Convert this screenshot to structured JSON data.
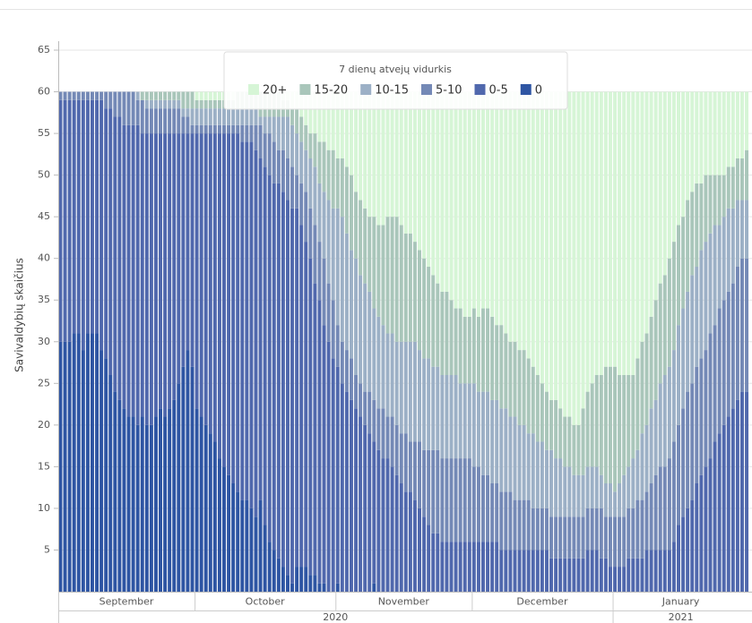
{
  "chart_data": {
    "type": "stacked_bar",
    "y_label": "Savivaldybių skaičius",
    "legend_title": "7 dienų atvejų vidurkis",
    "ylim": [
      0,
      65
    ],
    "yticks": [
      5,
      10,
      15,
      20,
      25,
      30,
      35,
      40,
      45,
      50,
      55,
      60,
      65
    ],
    "grid": true,
    "categories": [
      "September",
      "September",
      "September",
      "September",
      "September",
      "September",
      "September",
      "September",
      "September",
      "September",
      "September",
      "September",
      "September",
      "September",
      "September",
      "September",
      "September",
      "September",
      "September",
      "September",
      "September",
      "September",
      "September",
      "September",
      "September",
      "September",
      "September",
      "September",
      "September",
      "September",
      "October",
      "October",
      "October",
      "October",
      "October",
      "October",
      "October",
      "October",
      "October",
      "October",
      "October",
      "October",
      "October",
      "October",
      "October",
      "October",
      "October",
      "October",
      "October",
      "October",
      "October",
      "October",
      "October",
      "October",
      "October",
      "October",
      "October",
      "October",
      "October",
      "October",
      "October",
      "November",
      "November",
      "November",
      "November",
      "November",
      "November",
      "November",
      "November",
      "November",
      "November",
      "November",
      "November",
      "November",
      "November",
      "November",
      "November",
      "November",
      "November",
      "November",
      "November",
      "November",
      "November",
      "November",
      "November",
      "November",
      "November",
      "November",
      "November",
      "November",
      "November",
      "December",
      "December",
      "December",
      "December",
      "December",
      "December",
      "December",
      "December",
      "December",
      "December",
      "December",
      "December",
      "December",
      "December",
      "December",
      "December",
      "December",
      "December",
      "December",
      "December",
      "December",
      "December",
      "December",
      "December",
      "December",
      "December",
      "December",
      "December",
      "December",
      "December",
      "December",
      "January",
      "January",
      "January",
      "January",
      "January",
      "January",
      "January",
      "January",
      "January",
      "January",
      "January",
      "January",
      "January",
      "January",
      "January",
      "January",
      "January",
      "January",
      "January",
      "January",
      "January",
      "January",
      "January",
      "January",
      "January",
      "January",
      "January",
      "January",
      "January",
      "January"
    ],
    "years": [
      "2020",
      "2020",
      "2020",
      "2020",
      "2020",
      "2020",
      "2020",
      "2020",
      "2020",
      "2020",
      "2020",
      "2020",
      "2020",
      "2020",
      "2020",
      "2020",
      "2020",
      "2020",
      "2020",
      "2020",
      "2020",
      "2020",
      "2020",
      "2020",
      "2020",
      "2020",
      "2020",
      "2020",
      "2020",
      "2020",
      "2020",
      "2020",
      "2020",
      "2020",
      "2020",
      "2020",
      "2020",
      "2020",
      "2020",
      "2020",
      "2020",
      "2020",
      "2020",
      "2020",
      "2020",
      "2020",
      "2020",
      "2020",
      "2020",
      "2020",
      "2020",
      "2020",
      "2020",
      "2020",
      "2020",
      "2020",
      "2020",
      "2020",
      "2020",
      "2020",
      "2020",
      "2020",
      "2020",
      "2020",
      "2020",
      "2020",
      "2020",
      "2020",
      "2020",
      "2020",
      "2020",
      "2020",
      "2020",
      "2020",
      "2020",
      "2020",
      "2020",
      "2020",
      "2020",
      "2020",
      "2020",
      "2020",
      "2020",
      "2020",
      "2020",
      "2020",
      "2020",
      "2020",
      "2020",
      "2020",
      "2020",
      "2020",
      "2020",
      "2020",
      "2020",
      "2020",
      "2020",
      "2020",
      "2020",
      "2020",
      "2020",
      "2020",
      "2020",
      "2020",
      "2020",
      "2020",
      "2020",
      "2020",
      "2020",
      "2020",
      "2020",
      "2020",
      "2020",
      "2020",
      "2020",
      "2020",
      "2020",
      "2020",
      "2020",
      "2020",
      "2020",
      "2020",
      "2021",
      "2021",
      "2021",
      "2021",
      "2021",
      "2021",
      "2021",
      "2021",
      "2021",
      "2021",
      "2021",
      "2021",
      "2021",
      "2021",
      "2021",
      "2021",
      "2021",
      "2021",
      "2021",
      "2021",
      "2021",
      "2021",
      "2021",
      "2021",
      "2021",
      "2021",
      "2021",
      "2021",
      "2021",
      "2021"
    ],
    "series": [
      {
        "name": "20+",
        "color": "#d6f5d6",
        "values": [
          0,
          0,
          0,
          0,
          0,
          0,
          0,
          0,
          0,
          0,
          0,
          0,
          0,
          0,
          0,
          0,
          0,
          0,
          0,
          0,
          0,
          0,
          0,
          0,
          0,
          0,
          0,
          0,
          0,
          0,
          1,
          1,
          1,
          1,
          1,
          1,
          1,
          1,
          1,
          0,
          0,
          0,
          0,
          0,
          0,
          0,
          0,
          0,
          0,
          1,
          1,
          2,
          2,
          3,
          4,
          5,
          5,
          6,
          6,
          7,
          7,
          8,
          8,
          9,
          10,
          12,
          13,
          14,
          15,
          15,
          16,
          16,
          15,
          15,
          15,
          16,
          17,
          17,
          18,
          19,
          20,
          21,
          22,
          23,
          24,
          24,
          25,
          26,
          26,
          27,
          27,
          26,
          27,
          26,
          26,
          27,
          28,
          28,
          29,
          30,
          30,
          31,
          31,
          32,
          33,
          34,
          35,
          36,
          37,
          37,
          38,
          39,
          39,
          40,
          40,
          38,
          36,
          35,
          34,
          34,
          33,
          33,
          33,
          34,
          34,
          34,
          34,
          32,
          30,
          29,
          27,
          25,
          23,
          22,
          20,
          18,
          16,
          15,
          13,
          12,
          11,
          11,
          10,
          10,
          10,
          10,
          10,
          9,
          9,
          8,
          8,
          7
        ]
      },
      {
        "name": "15-20",
        "color": "#a9c6ba",
        "values": [
          0,
          0,
          0,
          0,
          0,
          0,
          0,
          0,
          0,
          0,
          0,
          0,
          0,
          0,
          0,
          0,
          0,
          0,
          1,
          1,
          1,
          1,
          1,
          1,
          1,
          1,
          1,
          2,
          2,
          2,
          1,
          1,
          1,
          1,
          1,
          1,
          1,
          1,
          1,
          2,
          2,
          2,
          2,
          2,
          3,
          3,
          3,
          3,
          3,
          2,
          2,
          2,
          3,
          3,
          3,
          3,
          4,
          5,
          6,
          6,
          7,
          6,
          7,
          8,
          9,
          8,
          9,
          9,
          9,
          11,
          11,
          12,
          14,
          14,
          15,
          14,
          13,
          13,
          12,
          12,
          12,
          11,
          11,
          10,
          10,
          10,
          9,
          8,
          9,
          8,
          8,
          9,
          9,
          10,
          10,
          10,
          9,
          10,
          9,
          9,
          9,
          9,
          9,
          9,
          8,
          8,
          7,
          7,
          6,
          7,
          6,
          6,
          6,
          6,
          6,
          8,
          9,
          10,
          11,
          12,
          14,
          14,
          15,
          13,
          12,
          11,
          10,
          11,
          11,
          11,
          11,
          12,
          12,
          12,
          13,
          13,
          12,
          11,
          11,
          10,
          10,
          8,
          8,
          7,
          6,
          6,
          5,
          5,
          5,
          5,
          5,
          6
        ]
      },
      {
        "name": "10-15",
        "color": "#9cb0c6",
        "values": [
          0,
          0,
          0,
          0,
          0,
          0,
          0,
          0,
          0,
          0,
          0,
          0,
          0,
          0,
          0,
          0,
          0,
          1,
          0,
          1,
          1,
          1,
          1,
          1,
          1,
          1,
          1,
          1,
          1,
          2,
          2,
          2,
          2,
          2,
          2,
          2,
          2,
          2,
          2,
          2,
          2,
          2,
          2,
          2,
          1,
          2,
          2,
          3,
          4,
          4,
          5,
          5,
          5,
          5,
          5,
          6,
          7,
          7,
          8,
          10,
          11,
          14,
          15,
          14,
          13,
          14,
          13,
          13,
          12,
          11,
          11,
          10,
          10,
          10,
          10,
          11,
          11,
          12,
          12,
          11,
          11,
          11,
          10,
          10,
          10,
          10,
          10,
          10,
          9,
          9,
          9,
          10,
          9,
          10,
          10,
          10,
          10,
          10,
          10,
          9,
          10,
          9,
          9,
          8,
          9,
          8,
          8,
          7,
          8,
          7,
          7,
          6,
          6,
          5,
          5,
          5,
          5,
          5,
          5,
          4,
          4,
          4,
          3,
          4,
          5,
          5,
          6,
          6,
          8,
          8,
          9,
          9,
          10,
          11,
          11,
          11,
          12,
          12,
          12,
          13,
          12,
          13,
          13,
          12,
          12,
          10,
          10,
          10,
          9,
          8,
          7,
          7
        ]
      },
      {
        "name": "5-10",
        "color": "#7489b6",
        "values": [
          1,
          1,
          1,
          1,
          1,
          1,
          1,
          1,
          1,
          1,
          2,
          2,
          3,
          3,
          4,
          4,
          4,
          3,
          4,
          3,
          3,
          3,
          3,
          3,
          3,
          3,
          3,
          2,
          2,
          1,
          1,
          1,
          1,
          1,
          1,
          1,
          1,
          1,
          1,
          1,
          2,
          2,
          2,
          3,
          4,
          4,
          5,
          5,
          4,
          5,
          5,
          5,
          4,
          5,
          6,
          6,
          7,
          7,
          8,
          7,
          7,
          5,
          5,
          5,
          5,
          4,
          4,
          4,
          5,
          5,
          5,
          6,
          5,
          6,
          6,
          6,
          7,
          6,
          7,
          8,
          8,
          9,
          10,
          10,
          10,
          10,
          10,
          10,
          10,
          10,
          10,
          9,
          9,
          8,
          8,
          7,
          7,
          7,
          7,
          7,
          6,
          6,
          6,
          6,
          5,
          5,
          5,
          5,
          5,
          5,
          5,
          5,
          5,
          5,
          5,
          5,
          5,
          5,
          5,
          6,
          5,
          6,
          6,
          6,
          6,
          6,
          6,
          7,
          7,
          7,
          8,
          9,
          10,
          10,
          11,
          12,
          12,
          13,
          14,
          14,
          14,
          14,
          14,
          15,
          14,
          15,
          15,
          15,
          15,
          16,
          16,
          16
        ]
      },
      {
        "name": "0-5",
        "color": "#5068ad",
        "values": [
          29,
          29,
          29,
          28,
          28,
          30,
          28,
          28,
          28,
          30,
          30,
          32,
          33,
          34,
          34,
          35,
          35,
          36,
          34,
          35,
          35,
          34,
          33,
          34,
          33,
          32,
          30,
          28,
          26,
          28,
          33,
          34,
          35,
          36,
          37,
          39,
          40,
          41,
          42,
          43,
          43,
          43,
          44,
          44,
          41,
          43,
          44,
          44,
          45,
          45,
          45,
          45,
          43,
          41,
          39,
          38,
          35,
          34,
          31,
          30,
          28,
          26,
          25,
          24,
          23,
          22,
          21,
          20,
          19,
          17,
          17,
          16,
          16,
          15,
          14,
          13,
          12,
          12,
          11,
          10,
          9,
          8,
          7,
          7,
          6,
          6,
          6,
          6,
          6,
          6,
          6,
          6,
          6,
          6,
          6,
          6,
          6,
          5,
          5,
          5,
          5,
          5,
          5,
          5,
          5,
          5,
          5,
          5,
          4,
          4,
          4,
          4,
          4,
          4,
          4,
          4,
          5,
          5,
          5,
          4,
          4,
          3,
          3,
          3,
          3,
          4,
          4,
          4,
          4,
          5,
          5,
          5,
          5,
          5,
          5,
          6,
          8,
          9,
          10,
          11,
          13,
          14,
          15,
          16,
          18,
          19,
          20,
          21,
          22,
          23,
          24,
          24
        ]
      },
      {
        "name": "0",
        "color": "#2e55a3",
        "values": [
          30,
          30,
          30,
          31,
          31,
          29,
          31,
          31,
          31,
          29,
          28,
          26,
          24,
          23,
          22,
          21,
          21,
          20,
          21,
          20,
          20,
          21,
          22,
          21,
          22,
          23,
          25,
          27,
          29,
          27,
          22,
          21,
          20,
          19,
          18,
          16,
          15,
          14,
          13,
          12,
          11,
          11,
          10,
          9,
          11,
          8,
          6,
          5,
          4,
          3,
          2,
          1,
          3,
          3,
          3,
          2,
          2,
          1,
          1,
          0,
          0,
          1,
          0,
          0,
          0,
          0,
          0,
          0,
          0,
          1,
          0,
          0,
          0,
          0,
          0,
          0,
          0,
          0,
          0,
          0,
          0,
          0,
          0,
          0,
          0,
          0,
          0,
          0,
          0,
          0,
          0,
          0,
          0,
          0,
          0,
          0,
          0,
          0,
          0,
          0,
          0,
          0,
          0,
          0,
          0,
          0,
          0,
          0,
          0,
          0,
          0,
          0,
          0,
          0,
          0,
          0,
          0,
          0,
          0,
          0,
          0,
          0,
          0,
          0,
          0,
          0,
          0,
          0,
          0,
          0,
          0,
          0,
          0,
          0,
          0,
          0,
          0,
          0,
          0,
          0,
          0,
          0,
          0,
          0,
          0,
          0,
          0,
          0,
          0,
          0,
          0,
          0
        ]
      }
    ]
  }
}
